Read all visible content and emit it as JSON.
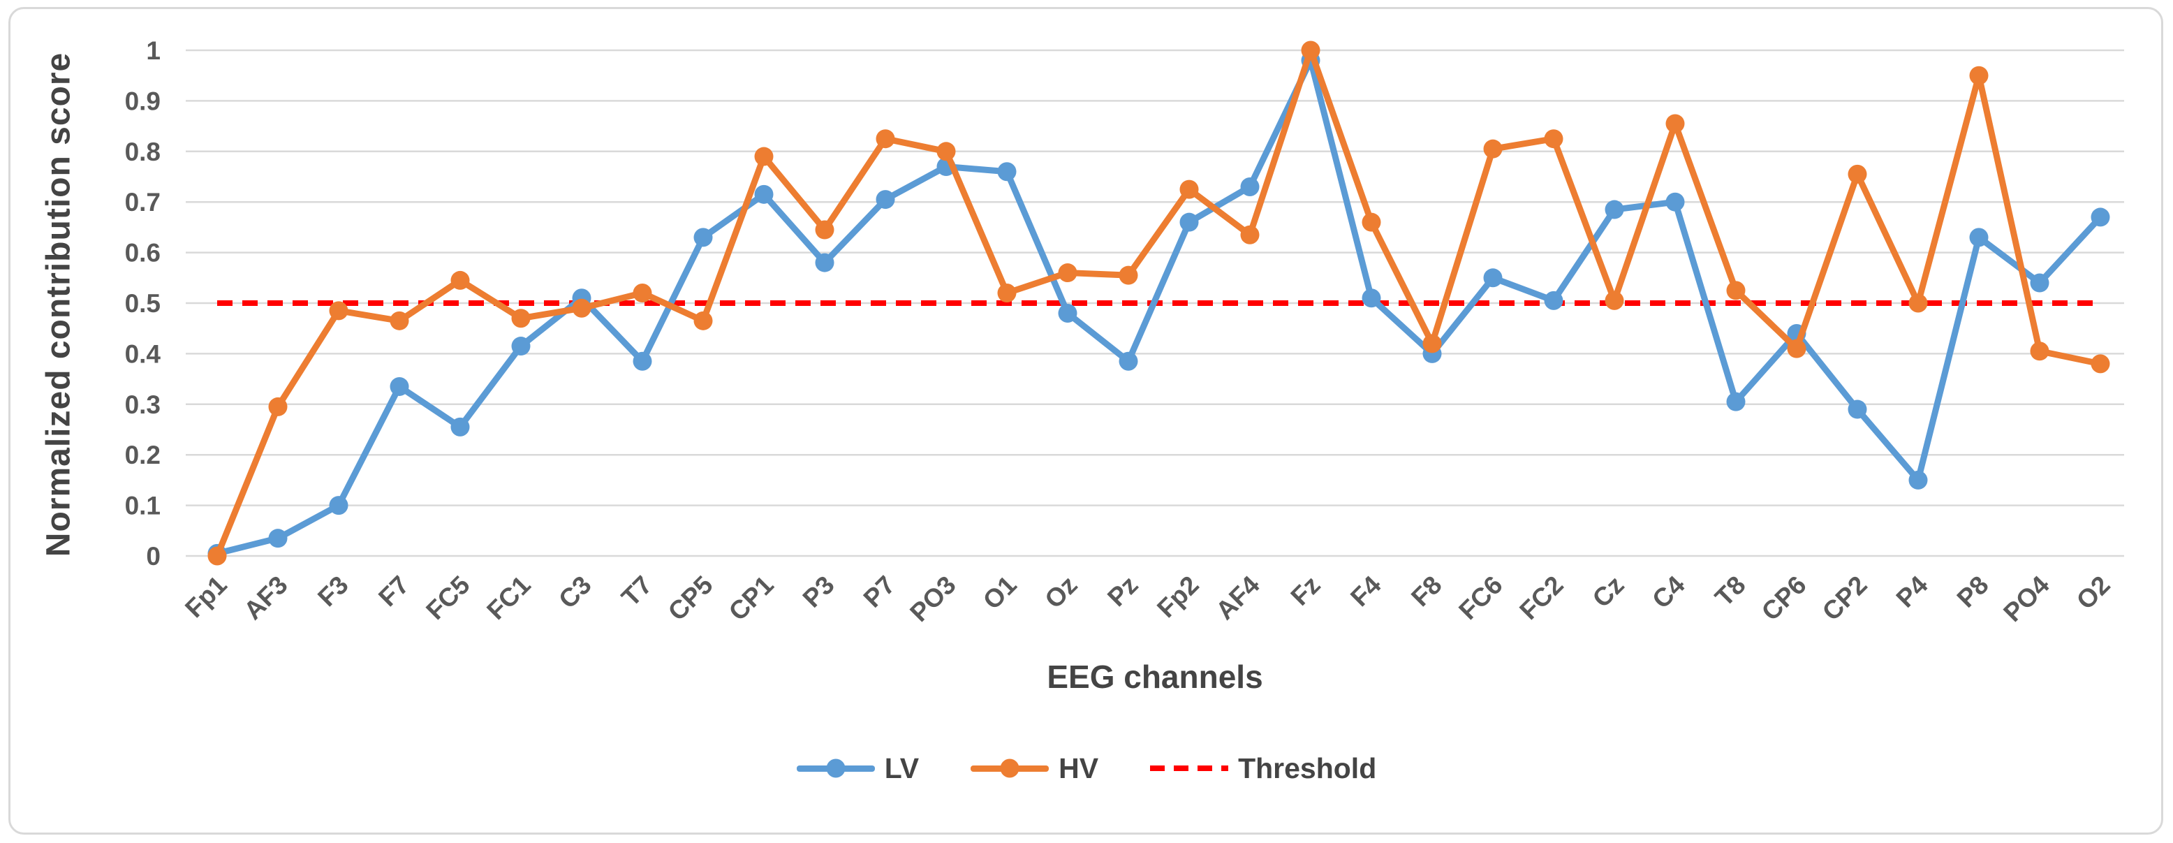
{
  "chart_data": {
    "type": "line",
    "title": "",
    "xlabel": "EEG channels",
    "ylabel": "Normalized contribution score",
    "ylim": [
      0,
      1
    ],
    "ytick_step": 0.1,
    "grid": "horizontal",
    "legend_position": "bottom-center",
    "categories": [
      "Fp1",
      "AF3",
      "F3",
      "F7",
      "FC5",
      "FC1",
      "C3",
      "T7",
      "CP5",
      "CP1",
      "P3",
      "P7",
      "PO3",
      "O1",
      "Oz",
      "Pz",
      "Fp2",
      "AF4",
      "Fz",
      "F4",
      "F8",
      "FC6",
      "FC2",
      "Cz",
      "C4",
      "T8",
      "CP6",
      "CP2",
      "P4",
      "P8",
      "PO4",
      "O2"
    ],
    "series": [
      {
        "name": "LV",
        "color": "#5B9BD5",
        "marker": "circle",
        "values": [
          0.005,
          0.035,
          0.1,
          0.335,
          0.255,
          0.415,
          0.51,
          0.385,
          0.63,
          0.715,
          0.58,
          0.705,
          0.77,
          0.76,
          0.48,
          0.385,
          0.66,
          0.73,
          0.98,
          0.51,
          0.4,
          0.55,
          0.505,
          0.685,
          0.7,
          0.305,
          0.44,
          0.29,
          0.15,
          0.63,
          0.54,
          0.67
        ]
      },
      {
        "name": "HV",
        "color": "#ED7D31",
        "marker": "circle",
        "values": [
          0.0,
          0.295,
          0.485,
          0.465,
          0.545,
          0.47,
          0.49,
          0.52,
          0.465,
          0.79,
          0.645,
          0.825,
          0.8,
          0.52,
          0.56,
          0.555,
          0.725,
          0.635,
          1.0,
          0.66,
          0.42,
          0.805,
          0.825,
          0.505,
          0.855,
          0.525,
          0.41,
          0.755,
          0.5,
          0.95,
          0.405,
          0.38
        ]
      }
    ],
    "threshold": {
      "label": "Threshold",
      "value": 0.5,
      "color": "#FF0000",
      "style": "dashed"
    },
    "colors": {
      "grid": "#D9D9D9",
      "tick_text": "#595959",
      "title_text": "#444444",
      "background": "#FFFFFF",
      "frame": "#D9D9D9"
    }
  }
}
